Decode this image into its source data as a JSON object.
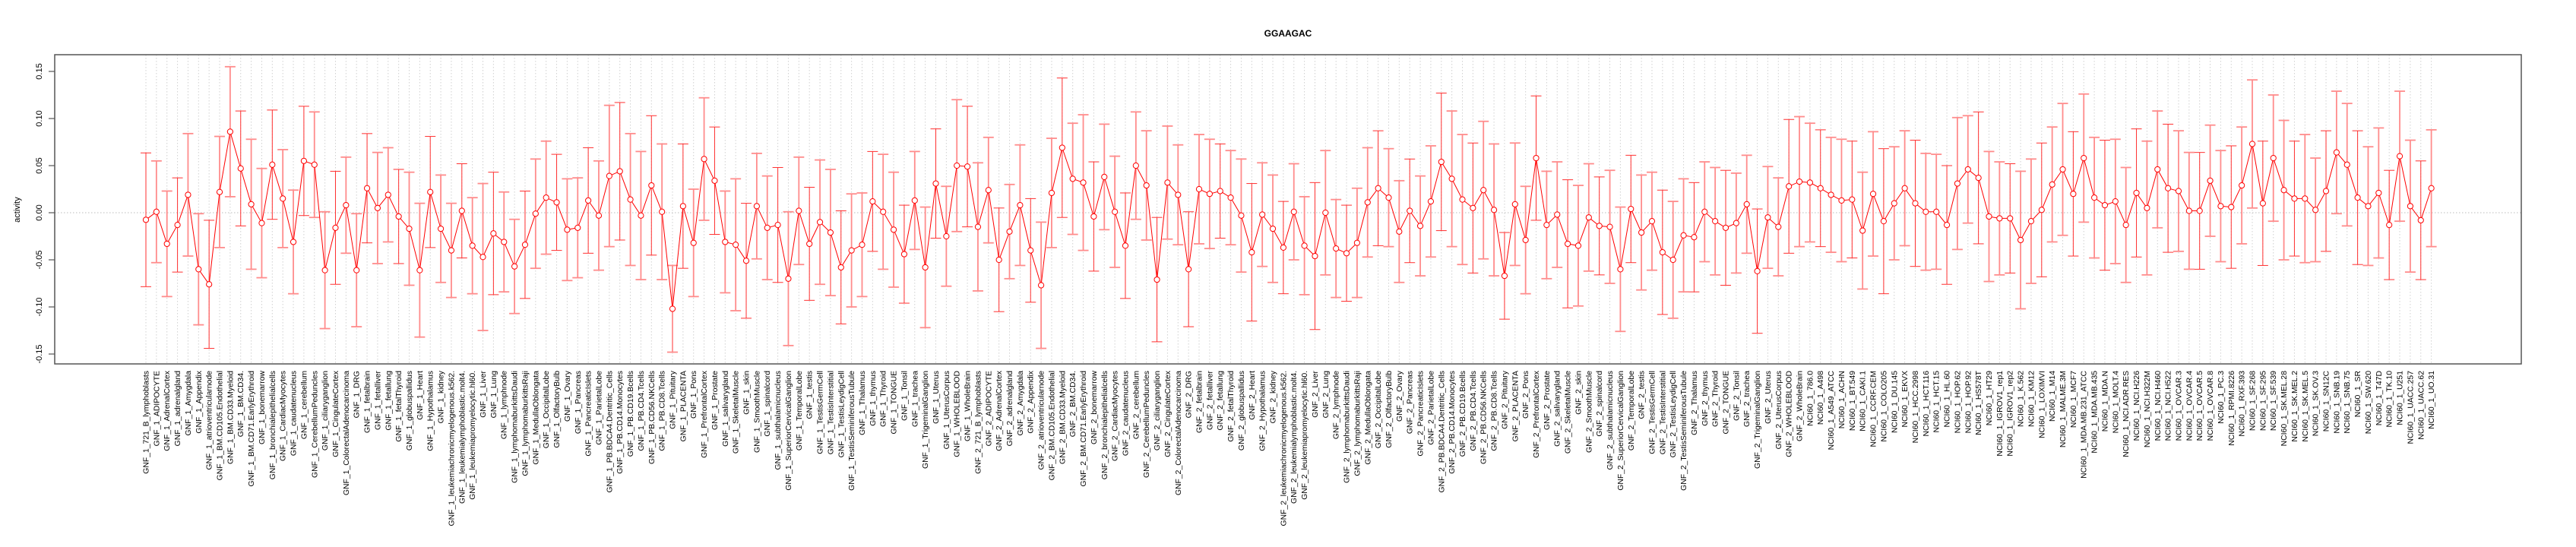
{
  "chart_data": {
    "type": "line",
    "title": "GGAAGAC",
    "xlabel": "",
    "ylabel": "activity",
    "ylim": [
      -0.165,
      0.165
    ],
    "yticks": [
      "-0.15",
      "-0.10",
      "-0.05",
      "0.00",
      "0.05",
      "0.10",
      "0.15"
    ],
    "ytick_values": [
      -0.15,
      -0.1,
      -0.05,
      0.0,
      0.05,
      0.1,
      0.15
    ],
    "grid": "vertical dotted per category, dotted zero line",
    "series_color": "#ff0000",
    "errorbar_color": "#ff8c8c",
    "categories": [
      "GNF_1_721_B_lymphoblasts",
      "GNF_1_ADIPOCYTE",
      "GNF_1_AdrenalCortex",
      "GNF_1_adrenalgland",
      "GNF_1_Amygdala",
      "GNF_1_Appendix",
      "GNF_1_atrioventricularnode",
      "GNF_1_BM.CD105.Endothelial",
      "GNF_1_BM.CD33.Myeloid",
      "GNF_1_BM.CD34.",
      "GNF_1_BM.CD71.EarlyErythroid",
      "GNF_1_bonemarrow",
      "GNF_1_bronchialepithelialcells",
      "GNF_1_CardiacMyocytes",
      "GNF_1_caudatenucleus",
      "GNF_1_cerebellum",
      "GNF_1_CerebellumPeduncles",
      "GNF_1_ciliaryganglion",
      "GNF_1_CingulateCortex",
      "GNF_1_ColorectalAdenocarcinoma",
      "GNF_1_DRG",
      "GNF_1_fetalbrain",
      "GNF_1_fetalliver",
      "GNF_1_fetallung",
      "GNF_1_fetalThyroid",
      "GNF_1_globuspallidus",
      "GNF_1_Heart",
      "GNF_1_Hypothalamus",
      "GNF_1_kidney",
      "GNF_1_leukemiachronicmyelogenous.k562.",
      "GNF_1_leukemialymphoblastic.molt4.",
      "GNF_1_leukemiapromyelocytic.hl60.",
      "GNF_1_Liver",
      "GNF_1_Lung",
      "GNF_1_lymphnode",
      "GNF_1_lymphomaburkittsDaudi",
      "GNF_1_lymphomaburkittsRaji",
      "GNF_1_MedullaOblongata",
      "GNF_1_OccipitalLobe",
      "GNF_1_OlfactoryBulb",
      "GNF_1_Ovary",
      "GNF_1_Pancreas",
      "GNF_1_PancreaticIslets",
      "GNF_1_ParietalLobe",
      "GNF_1_PB.BDCA4.Dentritic_Cells",
      "GNF_1_PB.CD14.Monocytes",
      "GNF_1_PB.CD19.Bcells",
      "GNF_1_PB.CD4.Tcells",
      "GNF_1_PB.CD56.NKCells",
      "GNF_1_PB.CD8.Tcells",
      "GNF_1_Pituitary",
      "GNF_1_PLACENTA",
      "GNF_1_Pons",
      "GNF_1_PrefrontalCortex",
      "GNF_1_Prostate",
      "GNF_1_salivarygland",
      "GNF_1_SkeletalMuscle",
      "GNF_1_skin",
      "GNF_1_SmoothMuscle",
      "GNF_1_spinalcord",
      "GNF_1_subthalamicnucleus",
      "GNF_1_SuperiorCervicalGanglion",
      "GNF_1_TemporalLobe",
      "GNF_1_testis",
      "GNF_1_TestisGermCell",
      "GNF_1_TestisInterstitial",
      "GNF_1_TestisLeydigCell",
      "GNF_1_TestisSeminiferousTubule",
      "GNF_1_Thalamus",
      "GNF_1_thymus",
      "GNF_1_Thyroid",
      "GNF_1_TONGUE",
      "GNF_1_Tonsil",
      "GNF_1_trachea",
      "GNF_1_TrigeminalGanglion",
      "GNF_1_Uterus",
      "GNF_1_UterusCorpus",
      "GNF_1_WHOLEBLOOD",
      "GNF_1_WholeBrain",
      "GNF_2_721_B_lymphoblasts",
      "GNF_2_ADIPOCYTE",
      "GNF_2_AdrenalCortex",
      "GNF_2_adrenalgland",
      "GNF_2_Amygdala",
      "GNF_2_Appendix",
      "GNF_2_atrioventricularnode",
      "GNF_2_BM.CD105.Endothelial",
      "GNF_2_BM.CD33.Myeloid",
      "GNF_2_BM.CD34.",
      "GNF_2_BM.CD71.EarlyErythroid",
      "GNF_2_bonemarrow",
      "GNF_2_bronchialepithelialcells",
      "GNF_2_CardiacMyocytes",
      "GNF_2_caudatenucleus",
      "GNF_2_cerebellum",
      "GNF_2_CerebellumPeduncles",
      "GNF_2_ciliaryganglion",
      "GNF_2_CingulateCortex",
      "GNF_2_ColorectalAdenocarcinoma",
      "GNF_2_DRG",
      "GNF_2_fetalbrain",
      "GNF_2_fetalliver",
      "GNF_2_fetallung",
      "GNF_2_fetalThyroid",
      "GNF_2_globuspallidus",
      "GNF_2_Heart",
      "GNF_2_Hypothalamus",
      "GNF_2_kidney",
      "GNF_2_leukemiachronicmyelogenous.k562.",
      "GNF_2_leukemialymphoblastic.molt4.",
      "GNF_2_leukemiapromyelocytic.hl60.",
      "GNF_2_Liver",
      "GNF_2_Lung",
      "GNF_2_lymphnode",
      "GNF_2_lymphomaburkittsDaudi",
      "GNF_2_lymphomaburkittsRaji",
      "GNF_2_MedullaOblongata",
      "GNF_2_OccipitalLobe",
      "GNF_2_OlfactoryBulb",
      "GNF_2_Ovary",
      "GNF_2_Pancreas",
      "GNF_2_PancreaticIslets",
      "GNF_2_ParietalLobe",
      "GNF_2_PB.BDCA4.Dentritic_Cells",
      "GNF_2_PB.CD14.Monocytes",
      "GNF_2_PB.CD19.Bcells",
      "GNF_2_PB.CD4.Tcells",
      "GNF_2_PB.CD56.NKCells",
      "GNF_2_PB.CD8.Tcells",
      "GNF_2_Pituitary",
      "GNF_2_PLACENTA",
      "GNF_2_Pons",
      "GNF_2_PrefrontalCortex",
      "GNF_2_Prostate",
      "GNF_2_salivarygland",
      "GNF_2_SkeletalMuscle",
      "GNF_2_skin",
      "GNF_2_SmoothMuscle",
      "GNF_2_spinalcord",
      "GNF_2_subthalamicnucleus",
      "GNF_2_SuperiorCervicalGanglion",
      "GNF_2_TemporalLobe",
      "GNF_2_testis",
      "GNF_2_TestisGermCell",
      "GNF_2_TestisInterstitial",
      "GNF_2_TestisLeydigCell",
      "GNF_2_TestisSeminiferousTubule",
      "GNF_2_Thalamus",
      "GNF_2_thymus",
      "GNF_2_Thyroid",
      "GNF_2_TONGUE",
      "GNF_2_Tonsil",
      "GNF_2_trachea",
      "GNF_2_TrigeminalGanglion",
      "GNF_2_Uterus",
      "GNF_2_UterusCorpus",
      "GNF_2_WHOLEBLOOD",
      "GNF_2_WholeBrain",
      "NCI60_1_786.0",
      "NCI60_1_A498",
      "NCI60_1_A549_ATCC",
      "NCI60_1_ACHN",
      "NCI60_1_BT.549",
      "NCI60_1_CAKI.1",
      "NCI60_1_CCRF.CEM",
      "NCI60_1_COLO205",
      "NCI60_1_DU.145",
      "NCI60_1_EKVX",
      "NCI60_1_HCC.2998",
      "NCI60_1_HCT.116",
      "NCI60_1_HCT.15",
      "NCI60_1_HL.60",
      "NCI60_1_HOP.62",
      "NCI60_1_HOP.92",
      "NCI60_1_HS578T",
      "NCI60_1_HT29",
      "NCI60_1_IGROV1_rep1",
      "NCI60_1_IGROV1_rep2",
      "NCI60_1_K.562",
      "NCI60_1_KM12",
      "NCI60_1_LOXIMVI",
      "NCI60_1_M14",
      "NCI60_1_MALME.3M",
      "NCI60_1_MCF7",
      "NCI60_1_MDA.MB.231_ATCC",
      "NCI60_1_MDA.MB.435",
      "NCI60_1_MDA.N",
      "NCI60_1_MOLT.4",
      "NCI60_1_NCI.ADR.RES",
      "NCI60_1_NCI.H226",
      "NCI60_1_NCI.H322M",
      "NCI60_1_NCI.H460",
      "NCI60_1_NCI.H522",
      "NCI60_1_OVCAR.3",
      "NCI60_1_OVCAR.4",
      "NCI60_1_OVCAR.5",
      "NCI60_1_OVCAR.8",
      "NCI60_1_PC.3",
      "NCI60_1_RPMI.8226",
      "NCI60_1_RXF.393",
      "NCI60_1_SF.268",
      "NCI60_1_SF.295",
      "NCI60_1_SF.539",
      "NCI60_1_SK.MEL.28",
      "NCI60_1_SK.MEL.2",
      "NCI60_1_SK.MEL.5",
      "NCI60_1_SK.OV.3",
      "NCI60_1_SN12C",
      "NCI60_1_SNB.19",
      "NCI60_1_SNB.75",
      "NCI60_1_SR",
      "NCI60_1_SW.620",
      "NCI60_1_T47D",
      "NCI60_1_TK.10",
      "NCI60_1_U251",
      "NCI60_1_UACC.257",
      "NCI60_1_UACC.62",
      "NCI60_1_UO.31"
    ],
    "values": [
      -0.0075,
      0.001,
      -0.033,
      -0.013,
      0.019,
      -0.06,
      -0.076,
      0.022,
      0.086,
      0.047,
      0.009,
      -0.011,
      0.051,
      0.015,
      -0.031,
      0.055,
      0.051,
      -0.061,
      -0.016,
      0.008,
      -0.061,
      0.026,
      0.005,
      0.019,
      -0.004,
      -0.017,
      -0.061,
      0.022,
      -0.017,
      -0.04,
      0.002,
      -0.035,
      -0.047,
      -0.022,
      -0.031,
      -0.057,
      -0.034,
      -0.001,
      0.016,
      0.011,
      -0.018,
      -0.016,
      0.013,
      -0.003,
      0.039,
      0.044,
      0.014,
      -0.003,
      0.029,
      0.001,
      -0.102,
      0.007,
      -0.032,
      0.057,
      0.034,
      -0.031,
      -0.034,
      -0.051,
      0.007,
      -0.016,
      -0.013,
      -0.07,
      0.002,
      -0.033,
      -0.01,
      -0.021,
      -0.058,
      -0.04,
      -0.034,
      0.012,
      0.001,
      -0.018,
      -0.044,
      0.013,
      -0.058,
      0.031,
      -0.025,
      0.05,
      0.049,
      -0.015,
      0.024,
      -0.05,
      -0.02,
      0.008,
      -0.04,
      -0.077,
      0.021,
      0.069,
      0.036,
      0.032,
      -0.004,
      0.038,
      0.001,
      -0.035,
      0.05,
      0.029,
      -0.071,
      0.032,
      0.019,
      -0.06,
      0.025,
      0.02,
      0.023,
      0.016,
      -0.003,
      -0.042,
      -0.002,
      -0.017,
      -0.037,
      0.001,
      -0.035,
      -0.046,
      0.0,
      -0.038,
      -0.043,
      -0.032,
      0.011,
      0.026,
      0.016,
      -0.02,
      0.002,
      -0.014,
      0.012,
      0.054,
      0.036,
      0.014,
      0.005,
      0.024,
      0.003,
      -0.067,
      0.009,
      -0.029,
      0.058,
      -0.013,
      -0.002,
      -0.033,
      -0.035,
      -0.005,
      -0.014,
      -0.015,
      -0.06,
      0.004,
      -0.021,
      -0.009,
      -0.042,
      -0.05,
      -0.024,
      -0.026,
      0.001,
      -0.009,
      -0.016,
      -0.011,
      0.009,
      -0.062,
      -0.005,
      -0.015,
      0.028,
      0.033,
      0.032,
      0.026,
      0.019,
      0.013,
      0.014,
      -0.019,
      0.02,
      -0.009,
      0.01,
      0.026,
      0.01,
      0.001,
      0.001,
      -0.013,
      0.031,
      0.046,
      0.037,
      -0.004,
      -0.006,
      -0.006,
      -0.029,
      -0.009,
      0.003,
      0.03,
      0.046,
      0.02,
      0.058,
      0.016,
      0.008,
      0.012,
      -0.013,
      0.021,
      0.005,
      0.046,
      0.026,
      0.023,
      0.002,
      0.002,
      0.034,
      0.007,
      0.006,
      0.029,
      0.073,
      0.01,
      0.058,
      0.024,
      0.015,
      0.015,
      0.003,
      0.023,
      0.064,
      0.051,
      0.016,
      0.007,
      0.021,
      -0.013,
      0.06,
      0.007,
      -0.008,
      0.026
    ],
    "errors": [
      0.071,
      0.054,
      0.056,
      0.05,
      0.065,
      0.059,
      0.068,
      0.059,
      0.069,
      0.061,
      0.069,
      0.058,
      0.058,
      0.052,
      0.055,
      0.058,
      0.056,
      0.062,
      0.06,
      0.051,
      0.06,
      0.058,
      0.059,
      0.05,
      0.05,
      0.06,
      0.071,
      0.059,
      0.057,
      0.05,
      0.05,
      0.051,
      0.078,
      0.065,
      0.053,
      0.05,
      0.057,
      0.058,
      0.06,
      0.051,
      0.054,
      0.053,
      0.056,
      0.058,
      0.075,
      0.073,
      0.07,
      0.068,
      0.074,
      0.072,
      0.046,
      0.066,
      0.057,
      0.065,
      0.057,
      0.054,
      0.07,
      0.061,
      0.056,
      0.055,
      0.061,
      0.071,
      0.057,
      0.06,
      0.066,
      0.067,
      0.06,
      0.06,
      0.055,
      0.053,
      0.061,
      0.061,
      0.052,
      0.052,
      0.064,
      0.058,
      0.053,
      0.07,
      0.064,
      0.068,
      0.056,
      0.055,
      0.05,
      0.064,
      0.055,
      0.067,
      0.058,
      0.074,
      0.059,
      0.072,
      0.058,
      0.056,
      0.059,
      0.056,
      0.057,
      0.058,
      0.066,
      0.06,
      0.053,
      0.061,
      0.058,
      0.058,
      0.05,
      0.05,
      0.06,
      0.073,
      0.055,
      0.057,
      0.049,
      0.051,
      0.052,
      0.078,
      0.066,
      0.052,
      0.051,
      0.058,
      0.058,
      0.061,
      0.052,
      0.054,
      0.055,
      0.053,
      0.059,
      0.073,
      0.072,
      0.069,
      0.069,
      0.073,
      0.07,
      0.046,
      0.065,
      0.057,
      0.066,
      0.057,
      0.056,
      0.068,
      0.064,
      0.057,
      0.052,
      0.06,
      0.066,
      0.057,
      0.061,
      0.052,
      0.066,
      0.062,
      0.06,
      0.058,
      0.053,
      0.057,
      0.061,
      0.053,
      0.052,
      0.066,
      0.054,
      0.052,
      0.071,
      0.069,
      0.063,
      0.062,
      0.061,
      0.065,
      0.062,
      0.062,
      0.066,
      0.077,
      0.06,
      0.061,
      0.067,
      0.062,
      0.061,
      0.063,
      0.07,
      0.057,
      0.07,
      0.069,
      0.06,
      0.058,
      0.073,
      0.066,
      0.071,
      0.061,
      0.07,
      0.066,
      0.068,
      0.064,
      0.069,
      0.066,
      0.061,
      0.068,
      0.071,
      0.062,
      0.068,
      0.064,
      0.062,
      0.062,
      0.059,
      0.059,
      0.065,
      0.062,
      0.068,
      0.066,
      0.067,
      0.074,
      0.061,
      0.068,
      0.055,
      0.064,
      0.065,
      0.065,
      0.071,
      0.063,
      0.069,
      0.058,
      0.069,
      0.07,
      0.063,
      0.062
    ]
  }
}
